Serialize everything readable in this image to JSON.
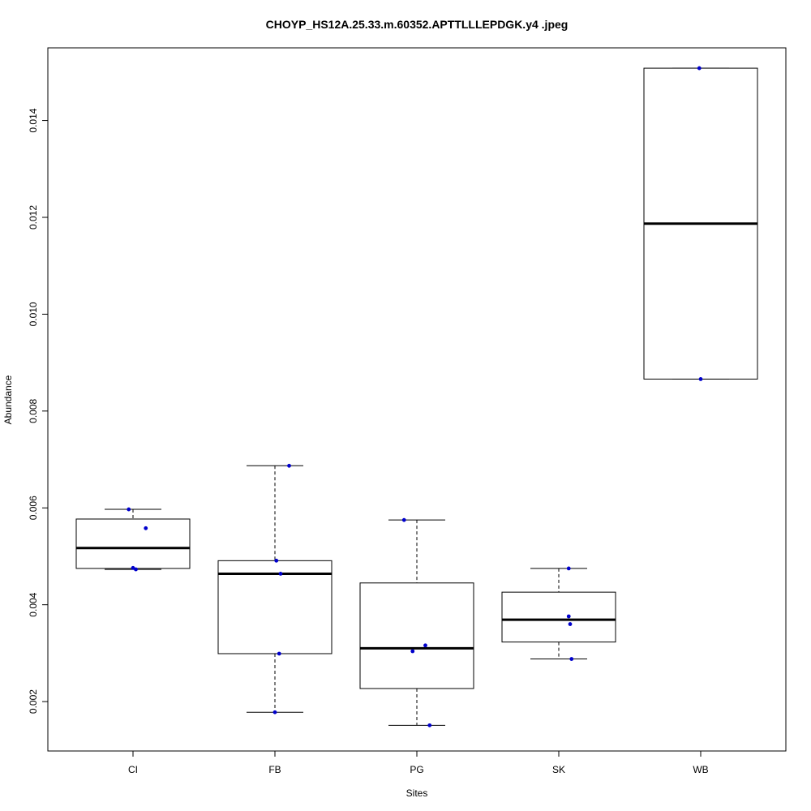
{
  "chart_data": {
    "type": "boxplot",
    "title": "CHOYP_HS12A.25.33.m.60352.APTTLLLEPDGK.y4 .jpeg",
    "xlabel": "Sites",
    "ylabel": "Abundance",
    "categories": [
      "CI",
      "FB",
      "PG",
      "SK",
      "WB"
    ],
    "ylim": [
      0.00098,
      0.0155
    ],
    "yticks": [
      0.002,
      0.004,
      0.006,
      0.008,
      0.01,
      0.012,
      0.014
    ],
    "ytick_labels": [
      "0.002",
      "0.004",
      "0.006",
      "0.008",
      "0.010",
      "0.012",
      "0.014"
    ],
    "boxes": [
      {
        "category": "CI",
        "whisker_low": 0.00473,
        "q1": 0.00475,
        "median": 0.00517,
        "q3": 0.00577,
        "whisker_high": 0.00597
      },
      {
        "category": "FB",
        "whisker_low": 0.00178,
        "q1": 0.00299,
        "median": 0.00464,
        "q3": 0.00491,
        "whisker_high": 0.00687
      },
      {
        "category": "PG",
        "whisker_low": 0.00151,
        "q1": 0.00227,
        "median": 0.0031,
        "q3": 0.00445,
        "whisker_high": 0.00575
      },
      {
        "category": "SK",
        "whisker_low": 0.00288,
        "q1": 0.00323,
        "median": 0.00369,
        "q3": 0.00426,
        "whisker_high": 0.00475
      },
      {
        "category": "WB",
        "whisker_low": 0.00866,
        "q1": 0.00866,
        "median": 0.01187,
        "q3": 0.01508,
        "whisker_high": 0.01508
      }
    ],
    "points": [
      {
        "category": "CI",
        "y": 0.00597,
        "jitter": -0.03
      },
      {
        "category": "CI",
        "y": 0.00558,
        "jitter": 0.09
      },
      {
        "category": "CI",
        "y": 0.00476,
        "jitter": 0.0
      },
      {
        "category": "CI",
        "y": 0.00473,
        "jitter": 0.02
      },
      {
        "category": "FB",
        "y": 0.00687,
        "jitter": 0.1
      },
      {
        "category": "FB",
        "y": 0.00491,
        "jitter": 0.01
      },
      {
        "category": "FB",
        "y": 0.00464,
        "jitter": 0.04
      },
      {
        "category": "FB",
        "y": 0.00299,
        "jitter": 0.03
      },
      {
        "category": "FB",
        "y": 0.00178,
        "jitter": 0.0
      },
      {
        "category": "PG",
        "y": 0.00575,
        "jitter": -0.09
      },
      {
        "category": "PG",
        "y": 0.00316,
        "jitter": 0.06
      },
      {
        "category": "PG",
        "y": 0.00304,
        "jitter": -0.03
      },
      {
        "category": "PG",
        "y": 0.00151,
        "jitter": 0.09
      },
      {
        "category": "SK",
        "y": 0.00475,
        "jitter": 0.07
      },
      {
        "category": "SK",
        "y": 0.00376,
        "jitter": 0.07
      },
      {
        "category": "SK",
        "y": 0.0036,
        "jitter": 0.08
      },
      {
        "category": "SK",
        "y": 0.00288,
        "jitter": 0.09
      },
      {
        "category": "WB",
        "y": 0.01508,
        "jitter": -0.01
      },
      {
        "category": "WB",
        "y": 0.00866,
        "jitter": 0.0
      }
    ],
    "point_color": "#0000cc",
    "box_color": "#000000",
    "grid": false,
    "legend": "none"
  }
}
